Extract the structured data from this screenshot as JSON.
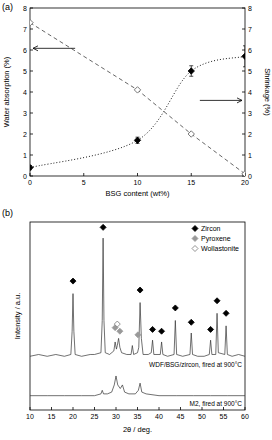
{
  "chart_data": [
    {
      "type": "scatter",
      "title": "(a)",
      "xlabel": "BSG content (wt%)",
      "ylabel": "Water absorption (%)",
      "y2label": "Shrinkage (%)",
      "x": [
        0,
        10,
        15,
        20
      ],
      "xlim": [
        0,
        20
      ],
      "xticks": [
        0,
        5,
        10,
        15,
        20
      ],
      "ylim": [
        0,
        8
      ],
      "yticks": [
        0,
        1,
        2,
        3,
        4,
        5,
        6,
        7,
        8
      ],
      "y2lim": [
        0,
        8
      ],
      "y2ticks": [
        0,
        1,
        2,
        3,
        4,
        5,
        6,
        7,
        8
      ],
      "series": [
        {
          "values": [
            7.3,
            4.1,
            2.0,
            0.1
          ],
          "marker": "open-diamond",
          "line_style": "dashed",
          "color": "#555555"
        },
        {
          "axis": "y2",
          "values": [
            0.4,
            1.7,
            5.0,
            5.7
          ],
          "errors": [
            0.1,
            0.15,
            0.25,
            0.5
          ],
          "marker": "diamond",
          "line_style": "dotted",
          "color": "#000000"
        }
      ]
    },
    {
      "type": "line",
      "title": "(b)",
      "xlabel": "2θ / deg.",
      "ylabel": "Intensity / a.u.",
      "xlim": [
        10,
        60
      ],
      "xticks": [
        10,
        15,
        20,
        25,
        30,
        35,
        40,
        45,
        50,
        55,
        60
      ],
      "ylim": [
        0,
        105
      ],
      "tick_labels": "x",
      "legend": "upper right",
      "annotations": [
        "WDF/BSG/zircon, fired at 900°C",
        "M2, fired at 900°C"
      ],
      "series": [
        {
          "type": "line",
          "color": "#333333",
          "x": [
            10,
            12,
            14,
            16,
            18,
            19.5,
            19.8,
            20.0,
            20.2,
            20.5,
            22,
            24,
            25,
            26.5,
            26.8,
            27.0,
            27.2,
            27.5,
            28.5,
            29.5,
            29.8,
            30.1,
            30.3,
            30.6,
            30.9,
            31.3,
            32.5,
            33.5,
            33.8,
            34.1,
            35.0,
            35.3,
            35.6,
            35.9,
            36.3,
            37.5,
            38.2,
            38.5,
            38.8,
            40.3,
            40.6,
            40.9,
            42,
            43.5,
            43.8,
            44.1,
            45.5,
            47.2,
            47.5,
            47.8,
            49,
            50.5,
            51.7,
            52.0,
            52.3,
            53.2,
            53.5,
            53.8,
            55.3,
            55.6,
            55.9,
            57,
            58.5,
            60
          ],
          "values": [
            30,
            31,
            30,
            31,
            30,
            31,
            44,
            65,
            44,
            31,
            30,
            31,
            31,
            32,
            50,
            96,
            50,
            32,
            31,
            33,
            38,
            34,
            36,
            40,
            35,
            32,
            31,
            31,
            36,
            31,
            32,
            35,
            60,
            40,
            31,
            31,
            32,
            39,
            31,
            31,
            38,
            31,
            30,
            31,
            50,
            31,
            30,
            31,
            43,
            31,
            30,
            30,
            31,
            39,
            31,
            31,
            54,
            32,
            31,
            47,
            31,
            30,
            31,
            30
          ]
        },
        {
          "type": "line",
          "color": "#333333",
          "x": [
            10,
            14,
            18,
            22,
            25,
            26.5,
            26.8,
            27.1,
            28,
            29,
            29.6,
            30.0,
            30.4,
            31.0,
            31.5,
            32,
            33,
            34.5,
            35.2,
            35.6,
            36.0,
            37,
            40,
            44,
            48,
            52,
            56,
            60
          ],
          "values": [
            8,
            8,
            8,
            8,
            8,
            9,
            11,
            9,
            9,
            10,
            14,
            19,
            14,
            12,
            14,
            10,
            9,
            9,
            11,
            15,
            10,
            9,
            8,
            8,
            8,
            8,
            8,
            8
          ]
        },
        {
          "type": "scatter",
          "name": "Zircon",
          "marker": "diamond",
          "color": "#000000",
          "x": [
            20.0,
            27.0,
            35.6,
            38.5,
            40.6,
            43.8,
            47.5,
            52.0,
            53.5,
            55.6
          ],
          "values": [
            72,
            102,
            67,
            45,
            44,
            57,
            49,
            45,
            61,
            54
          ]
        },
        {
          "type": "scatter",
          "name": "Pyroxene",
          "marker": "diamond",
          "color": "#999999",
          "x": [
            29.8,
            30.9,
            35.1
          ],
          "values": [
            46,
            44,
            42
          ]
        },
        {
          "type": "scatter",
          "name": "Wollastonite",
          "marker": "open-diamond",
          "color": "#777777",
          "x": [
            30.3
          ],
          "values": [
            48
          ]
        }
      ]
    }
  ]
}
